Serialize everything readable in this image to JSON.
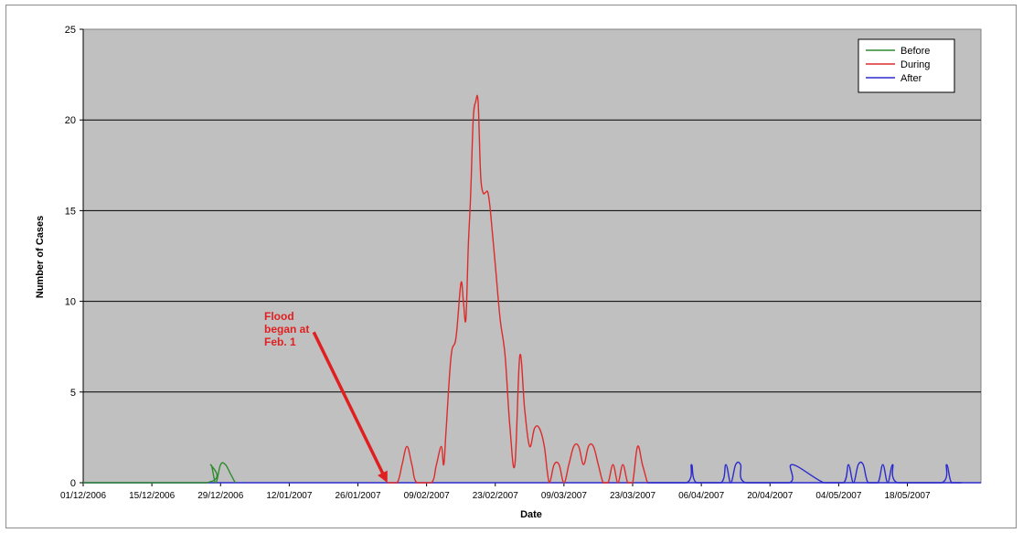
{
  "chart_data": {
    "type": "line",
    "title": "",
    "xlabel": "Date",
    "ylabel": "Number of Cases",
    "ylim": [
      0,
      25
    ],
    "yticks": [
      0,
      5,
      10,
      15,
      20,
      25
    ],
    "xlim": [
      "2006-12-01",
      "2007-06-02"
    ],
    "xticks": [
      "2006-12-01",
      "2006-12-15",
      "2006-12-29",
      "2007-01-12",
      "2007-01-26",
      "2007-02-09",
      "2007-02-23",
      "2007-03-09",
      "2007-03-23",
      "2007-04-06",
      "2007-04-20",
      "2007-05-04",
      "2007-05-18"
    ],
    "xtick_labels": [
      "01/12/2006",
      "15/12/2006",
      "29/12/2006",
      "12/01/2007",
      "26/01/2007",
      "09/02/2007",
      "23/02/2007",
      "09/03/2007",
      "23/03/2007",
      "06/04/2007",
      "20/04/2007",
      "04/05/2007",
      "18/05/2007"
    ],
    "grid": "horizontal",
    "plot_background": "#c0c0c0",
    "legend_position": "top-right",
    "series": [
      {
        "name": "Before",
        "color": "#2e8b2e",
        "points": [
          [
            "2006-12-01",
            0
          ],
          [
            "2006-12-26",
            0
          ],
          [
            "2006-12-27",
            1
          ],
          [
            "2006-12-28",
            0
          ],
          [
            "2006-12-29",
            1
          ],
          [
            "2006-12-30",
            1
          ],
          [
            "2006-12-31",
            0.5
          ],
          [
            "2007-01-01",
            0
          ]
        ]
      },
      {
        "name": "During",
        "color": "#dd2b2b",
        "points": [
          [
            "2007-02-01",
            0
          ],
          [
            "2007-02-03",
            0
          ],
          [
            "2007-02-04",
            1
          ],
          [
            "2007-02-05",
            2
          ],
          [
            "2007-02-06",
            1
          ],
          [
            "2007-02-07",
            0
          ],
          [
            "2007-02-10",
            0
          ],
          [
            "2007-02-11",
            1
          ],
          [
            "2007-02-12",
            2
          ],
          [
            "2007-02-12.5",
            1
          ],
          [
            "2007-02-13",
            3
          ],
          [
            "2007-02-14",
            7
          ],
          [
            "2007-02-15",
            8
          ],
          [
            "2007-02-16",
            11
          ],
          [
            "2007-02-16.5",
            10
          ],
          [
            "2007-02-17",
            9
          ],
          [
            "2007-02-17.5",
            13
          ],
          [
            "2007-02-18",
            16
          ],
          [
            "2007-02-18.5",
            20
          ],
          [
            "2007-02-19",
            21
          ],
          [
            "2007-02-19.5",
            21
          ],
          [
            "2007-02-20",
            17
          ],
          [
            "2007-02-20.5",
            16
          ],
          [
            "2007-02-21",
            16
          ],
          [
            "2007-02-21.5",
            16
          ],
          [
            "2007-02-22",
            15
          ],
          [
            "2007-02-23",
            12
          ],
          [
            "2007-02-24",
            9
          ],
          [
            "2007-02-25",
            7
          ],
          [
            "2007-02-26",
            3
          ],
          [
            "2007-02-27",
            1
          ],
          [
            "2007-02-28",
            7
          ],
          [
            "2007-03-01",
            4
          ],
          [
            "2007-03-02",
            2
          ],
          [
            "2007-03-03",
            3
          ],
          [
            "2007-03-04",
            3
          ],
          [
            "2007-03-05",
            2
          ],
          [
            "2007-03-06",
            0
          ],
          [
            "2007-03-07",
            1
          ],
          [
            "2007-03-08",
            1
          ],
          [
            "2007-03-09",
            0
          ],
          [
            "2007-03-10",
            1
          ],
          [
            "2007-03-11",
            2
          ],
          [
            "2007-03-12",
            2
          ],
          [
            "2007-03-13",
            1
          ],
          [
            "2007-03-14",
            2
          ],
          [
            "2007-03-15",
            2
          ],
          [
            "2007-03-16",
            1
          ],
          [
            "2007-03-17",
            0
          ],
          [
            "2007-03-18",
            0
          ],
          [
            "2007-03-19",
            1
          ],
          [
            "2007-03-20",
            0
          ],
          [
            "2007-03-21",
            1
          ],
          [
            "2007-03-22",
            0
          ],
          [
            "2007-03-23",
            0
          ],
          [
            "2007-03-24",
            2
          ],
          [
            "2007-03-25",
            1
          ],
          [
            "2007-03-26",
            0
          ]
        ]
      },
      {
        "name": "After",
        "color": "#2b2bcc",
        "points": [
          [
            "2007-03-26",
            0
          ],
          [
            "2007-04-03",
            0
          ],
          [
            "2007-04-04",
            1
          ],
          [
            "2007-04-05",
            0
          ],
          [
            "2007-04-10",
            0
          ],
          [
            "2007-04-11",
            1
          ],
          [
            "2007-04-12",
            0
          ],
          [
            "2007-04-13",
            1
          ],
          [
            "2007-04-14",
            1
          ],
          [
            "2007-04-15",
            0
          ],
          [
            "2007-04-24",
            0
          ],
          [
            "2007-04-24.5",
            1
          ],
          [
            "2007-05-01",
            0
          ],
          [
            "2007-05-05",
            0
          ],
          [
            "2007-05-06",
            1
          ],
          [
            "2007-05-07",
            0
          ],
          [
            "2007-05-08",
            1
          ],
          [
            "2007-05-09",
            1
          ],
          [
            "2007-05-10",
            0
          ],
          [
            "2007-05-12",
            0
          ],
          [
            "2007-05-13",
            1
          ],
          [
            "2007-05-14",
            0
          ],
          [
            "2007-05-15",
            1
          ],
          [
            "2007-05-16",
            0
          ],
          [
            "2007-05-25",
            0
          ],
          [
            "2007-05-26",
            1
          ],
          [
            "2007-05-27",
            0
          ],
          [
            "2007-05-29",
            0
          ]
        ]
      }
    ],
    "annotation": {
      "lines": [
        "Flood",
        "began at",
        "Feb. 1"
      ],
      "color": "#e02020",
      "arrow_to": [
        "2007-02-01",
        0
      ],
      "arrow_from": [
        "2007-01-17",
        8.3
      ]
    }
  }
}
